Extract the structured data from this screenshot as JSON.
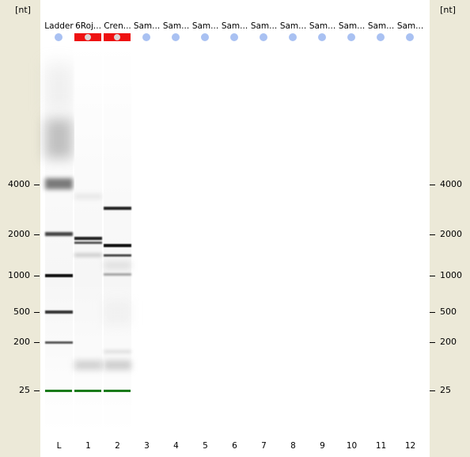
{
  "axis": {
    "unit_label": "[nt]",
    "size_markers": [
      {
        "label": "4000",
        "value": 4000
      },
      {
        "label": "2000",
        "value": 2000
      },
      {
        "label": "1000",
        "value": 1000
      },
      {
        "label": "500",
        "value": 500
      },
      {
        "label": "200",
        "value": 200
      },
      {
        "label": "25",
        "value": 25
      }
    ]
  },
  "lanes": [
    {
      "name": "Ladder",
      "number": "L",
      "status": "normal"
    },
    {
      "name": "6Roj...",
      "number": "1",
      "status": "alert"
    },
    {
      "name": "Cren...",
      "number": "2",
      "status": "alert"
    },
    {
      "name": "Sam...",
      "number": "3",
      "status": "normal"
    },
    {
      "name": "Sam...",
      "number": "4",
      "status": "normal"
    },
    {
      "name": "Sam...",
      "number": "5",
      "status": "normal"
    },
    {
      "name": "Sam...",
      "number": "6",
      "status": "normal"
    },
    {
      "name": "Sam...",
      "number": "7",
      "status": "normal"
    },
    {
      "name": "Sam...",
      "number": "8",
      "status": "normal"
    },
    {
      "name": "Sam...",
      "number": "9",
      "status": "normal"
    },
    {
      "name": "Sam...",
      "number": "10",
      "status": "normal"
    },
    {
      "name": "Sam...",
      "number": "11",
      "status": "normal"
    },
    {
      "name": "Sam...",
      "number": "12",
      "status": "normal"
    }
  ],
  "colors": {
    "panel": "#ece9d8",
    "status_dot": "#a9c1f2",
    "alert": "#ee1111",
    "lower_marker": "#1a7a1a"
  }
}
